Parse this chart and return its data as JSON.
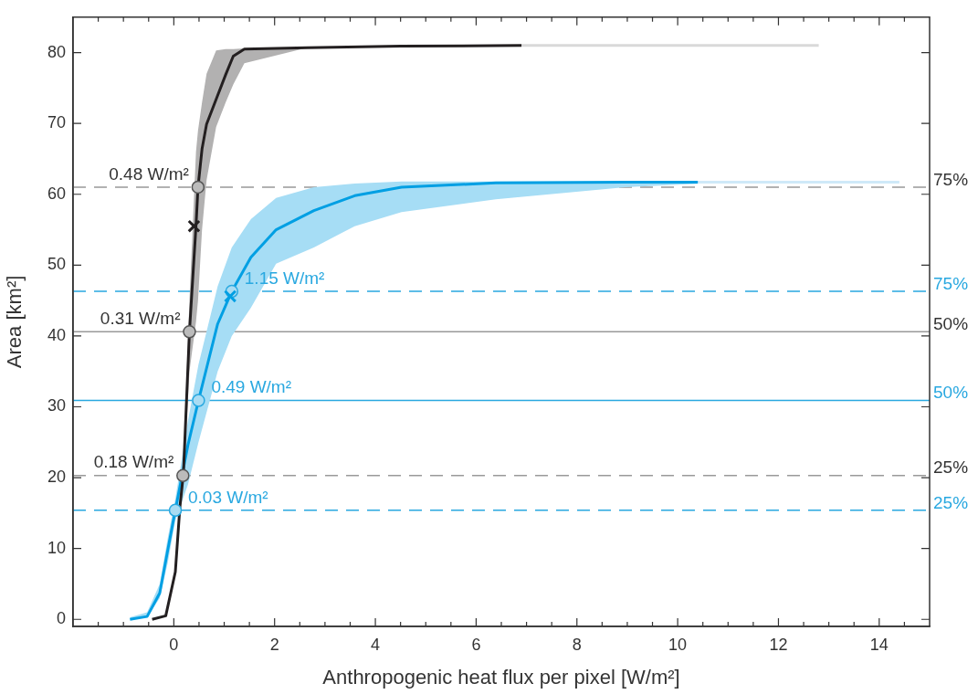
{
  "chart_data": {
    "type": "line",
    "xlabel": "Anthropogenic heat flux per pixel [W/m²]",
    "ylabel": "Area [km²]",
    "xlim": [
      -2,
      15
    ],
    "ylim": [
      -1,
      85
    ],
    "xticks": [
      {
        "value": -1.5,
        "label": null
      },
      {
        "value": -1,
        "label": null
      },
      {
        "value": -0.5,
        "label": null
      },
      0,
      {
        "value": 0.5,
        "label": null
      },
      {
        "value": 1,
        "label": null
      },
      {
        "value": 1.5,
        "label": null
      },
      2,
      {
        "value": 2.5,
        "label": null
      },
      {
        "value": 3,
        "label": null
      },
      {
        "value": 3.5,
        "label": null
      },
      4,
      {
        "value": 4.5,
        "label": null
      },
      {
        "value": 5,
        "label": null
      },
      {
        "value": 5.5,
        "label": null
      },
      6,
      {
        "value": 6.5,
        "label": null
      },
      {
        "value": 7,
        "label": null
      },
      {
        "value": 7.5,
        "label": null
      },
      8,
      {
        "value": 8.5,
        "label": null
      },
      {
        "value": 9,
        "label": null
      },
      {
        "value": 9.5,
        "label": null
      },
      10,
      {
        "value": 10.5,
        "label": null
      },
      {
        "value": 11,
        "label": null
      },
      {
        "value": 11.5,
        "label": null
      },
      12,
      {
        "value": 12.5,
        "label": null
      },
      {
        "value": 13,
        "label": null
      },
      {
        "value": 13.5,
        "label": null
      },
      14,
      {
        "value": 14.5,
        "label": null
      }
    ],
    "yticks": [
      0,
      10,
      20,
      30,
      40,
      50,
      60,
      70,
      80
    ],
    "grid": false,
    "legend": false,
    "series": [
      {
        "color": "#d9d9d9",
        "x": [
          6.9,
          12.8
        ],
        "values": [
          81,
          81
        ]
      },
      {
        "color": "#cfe9f8",
        "x": [
          10.4,
          14.4
        ],
        "values": [
          61.7,
          61.7
        ]
      },
      {
        "color": "#009fe3",
        "x": [
          -0.87,
          -0.53,
          -0.28,
          -0.12,
          0.03,
          0.28,
          0.49,
          0.87,
          1.15,
          1.53,
          2.03,
          2.78,
          3.59,
          4.52,
          6.39,
          8.96,
          10.4
        ],
        "values": [
          0,
          0.4,
          3.7,
          9.8,
          15.4,
          24.6,
          30.9,
          41.7,
          46.3,
          51.1,
          55.0,
          57.7,
          59.8,
          61.0,
          61.6,
          61.7,
          61.7
        ],
        "lower": [
          0,
          0.3,
          3,
          8,
          14,
          19,
          25,
          35,
          40,
          44,
          50.2,
          52.5,
          55.5,
          57.5,
          59.3,
          61.0,
          61.5
        ],
        "upper": [
          0.3,
          1,
          5,
          11.5,
          17,
          28,
          36,
          47,
          52.5,
          56.5,
          59.5,
          61.0,
          61.5,
          61.8,
          61.8,
          61.8,
          61.8
        ]
      },
      {
        "color": "#231f20",
        "x": [
          -0.43,
          -0.16,
          0.03,
          0.12,
          0.19,
          0.31,
          0.44,
          0.48,
          0.56,
          0.65,
          0.84,
          1.03,
          1.18,
          1.4,
          2.65,
          4.5,
          6.9
        ],
        "values": [
          0,
          0.5,
          6.7,
          15.8,
          20.5,
          40.6,
          55.5,
          61,
          66.4,
          69.9,
          73.4,
          76.9,
          79.5,
          80.5,
          80.7,
          80.9,
          81
        ],
        "lower": [
          0,
          0.5,
          6.5,
          15,
          19,
          35,
          42,
          45,
          55,
          62,
          69.5,
          73,
          75.5,
          78.5,
          80.7,
          80.9,
          81
        ],
        "upper": [
          0,
          0.6,
          7,
          17,
          22,
          45,
          66,
          69,
          73,
          77,
          80.3,
          80.5,
          80.5,
          80.6,
          80.7,
          80.9,
          81
        ]
      },
      {
        "type": "scatter",
        "marker": "cross",
        "color": "#231f20",
        "x": [
          0.4
        ],
        "values": [
          55.5
        ]
      },
      {
        "type": "scatter",
        "marker": "cross",
        "color": "#009fe3",
        "x": [
          1.12
        ],
        "values": [
          45.6
        ]
      },
      {
        "type": "scatter",
        "marker": "circle",
        "color": "#555555",
        "x": [
          0.18,
          0.31,
          0.48
        ],
        "values": [
          20.3,
          40.6,
          61
        ]
      },
      {
        "type": "scatter",
        "marker": "circle",
        "color": "#29a8e0",
        "x": [
          0.03,
          0.49,
          1.15
        ],
        "values": [
          15.4,
          30.9,
          46.3
        ]
      }
    ],
    "ref_lines": [
      {
        "axis": "y",
        "value": 61,
        "color": "#999999",
        "line_style": "dashed"
      },
      {
        "axis": "y",
        "value": 40.6,
        "color": "#999999",
        "line_style": "solid"
      },
      {
        "axis": "y",
        "value": 20.3,
        "color": "#999999",
        "line_style": "dashed"
      },
      {
        "axis": "y",
        "value": 46.3,
        "color": "#29a8e0",
        "line_style": "dashed"
      },
      {
        "axis": "y",
        "value": 30.9,
        "color": "#29a8e0",
        "line_style": "solid"
      },
      {
        "axis": "y",
        "value": 15.4,
        "color": "#29a8e0",
        "line_style": "dashed"
      }
    ],
    "annotations": [
      "75%",
      "50%",
      "25%",
      "75%",
      "50%",
      "25%",
      {
        "text": "0.48 W/m²",
        "x": 0.48,
        "y": 61
      },
      {
        "text": "0.31 W/m²",
        "x": 0.31,
        "y": 40.6
      },
      {
        "text": "0.18 W/m²",
        "x": 0.18,
        "y": 20.3
      },
      {
        "text": "1.15 W/m²",
        "x": 1.15,
        "y": 46.3
      },
      {
        "text": "0.49 W/m²",
        "x": 0.49,
        "y": 30.9
      },
      {
        "text": "0.03 W/m²",
        "x": 0.03,
        "y": 15.4
      }
    ]
  }
}
